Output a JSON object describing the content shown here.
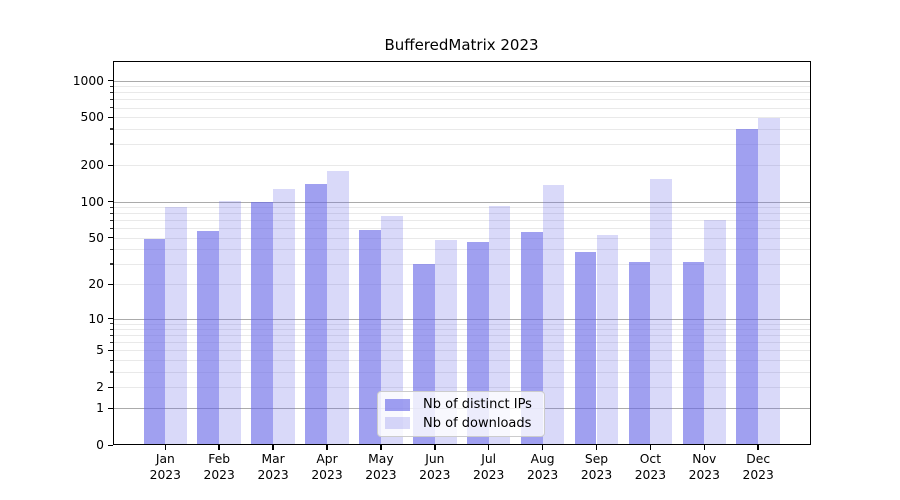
{
  "chart_data": {
    "type": "bar",
    "title": "BufferedMatrix 2023",
    "categories": [
      "Jan 2023",
      "Feb 2023",
      "Mar 2023",
      "Apr 2023",
      "May 2023",
      "Jun 2023",
      "Jul 2023",
      "Aug 2023",
      "Sep 2023",
      "Oct 2023",
      "Nov 2023",
      "Dec 2023"
    ],
    "series": [
      {
        "name": "Nb of distinct IPs",
        "color": "rgba(102,102,230,0.62)",
        "values": [
          49,
          57,
          100,
          139,
          58,
          30,
          46,
          56,
          38,
          31,
          31,
          398
        ]
      },
      {
        "name": "Nb of downloads",
        "color": "rgba(102,102,230,0.25)",
        "values": [
          91,
          101,
          127,
          180,
          76,
          48,
          92,
          138,
          53,
          154,
          70,
          490
        ]
      }
    ],
    "xlabel": "",
    "ylabel": "",
    "y_scale": "log1p",
    "ylim": [
      0,
      1451
    ],
    "y_ticks": [
      0,
      1,
      2,
      5,
      10,
      20,
      50,
      100,
      200,
      500,
      1000
    ],
    "grid": true,
    "grid_major_values": [
      1,
      10,
      100,
      1000
    ],
    "grid_minor_values": [
      2,
      3,
      4,
      5,
      6,
      7,
      8,
      9,
      20,
      30,
      40,
      50,
      60,
      70,
      80,
      90,
      200,
      300,
      400,
      500,
      600,
      700,
      800,
      900
    ],
    "legend_position": "lower center inside",
    "colors": {
      "grid_major": "#ababab",
      "grid_minor": "#e9e9e9",
      "axis": "#000000",
      "text": "#000000",
      "legend_border": "#cccccc",
      "legend_bg": "rgba(255,255,255,0.8)"
    }
  }
}
